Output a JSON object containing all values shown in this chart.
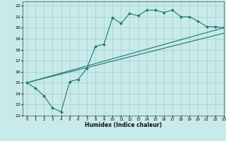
{
  "title": "",
  "xlabel": "Humidex (Indice chaleur)",
  "xlim": [
    -0.5,
    23
  ],
  "ylim": [
    12,
    22.4
  ],
  "xticks": [
    0,
    1,
    2,
    3,
    4,
    5,
    6,
    7,
    8,
    9,
    10,
    11,
    12,
    13,
    14,
    15,
    16,
    17,
    18,
    19,
    20,
    21,
    22,
    23
  ],
  "yticks": [
    12,
    13,
    14,
    15,
    16,
    17,
    18,
    19,
    20,
    21,
    22
  ],
  "bg_color": "#c8eaea",
  "grid_color": "#a0cccc",
  "line_color": "#1a7a6a",
  "line1_x": [
    0,
    1,
    2,
    3,
    4,
    5,
    6,
    7,
    8,
    9,
    10,
    11,
    12,
    13,
    14,
    15,
    16,
    17,
    18,
    19,
    20,
    21,
    22,
    23
  ],
  "line1_y": [
    15,
    14.5,
    13.8,
    12.7,
    12.35,
    15.1,
    15.3,
    16.3,
    18.3,
    18.5,
    20.9,
    20.4,
    21.3,
    21.1,
    21.6,
    21.6,
    21.4,
    21.6,
    21.0,
    21.0,
    20.6,
    20.1,
    20.1,
    20.0
  ],
  "line2_x": [
    0,
    23
  ],
  "line2_y": [
    15,
    20.0
  ],
  "line3_x": [
    0,
    23
  ],
  "line3_y": [
    15,
    19.5
  ],
  "figsize": [
    3.2,
    2.0
  ],
  "dpi": 100
}
